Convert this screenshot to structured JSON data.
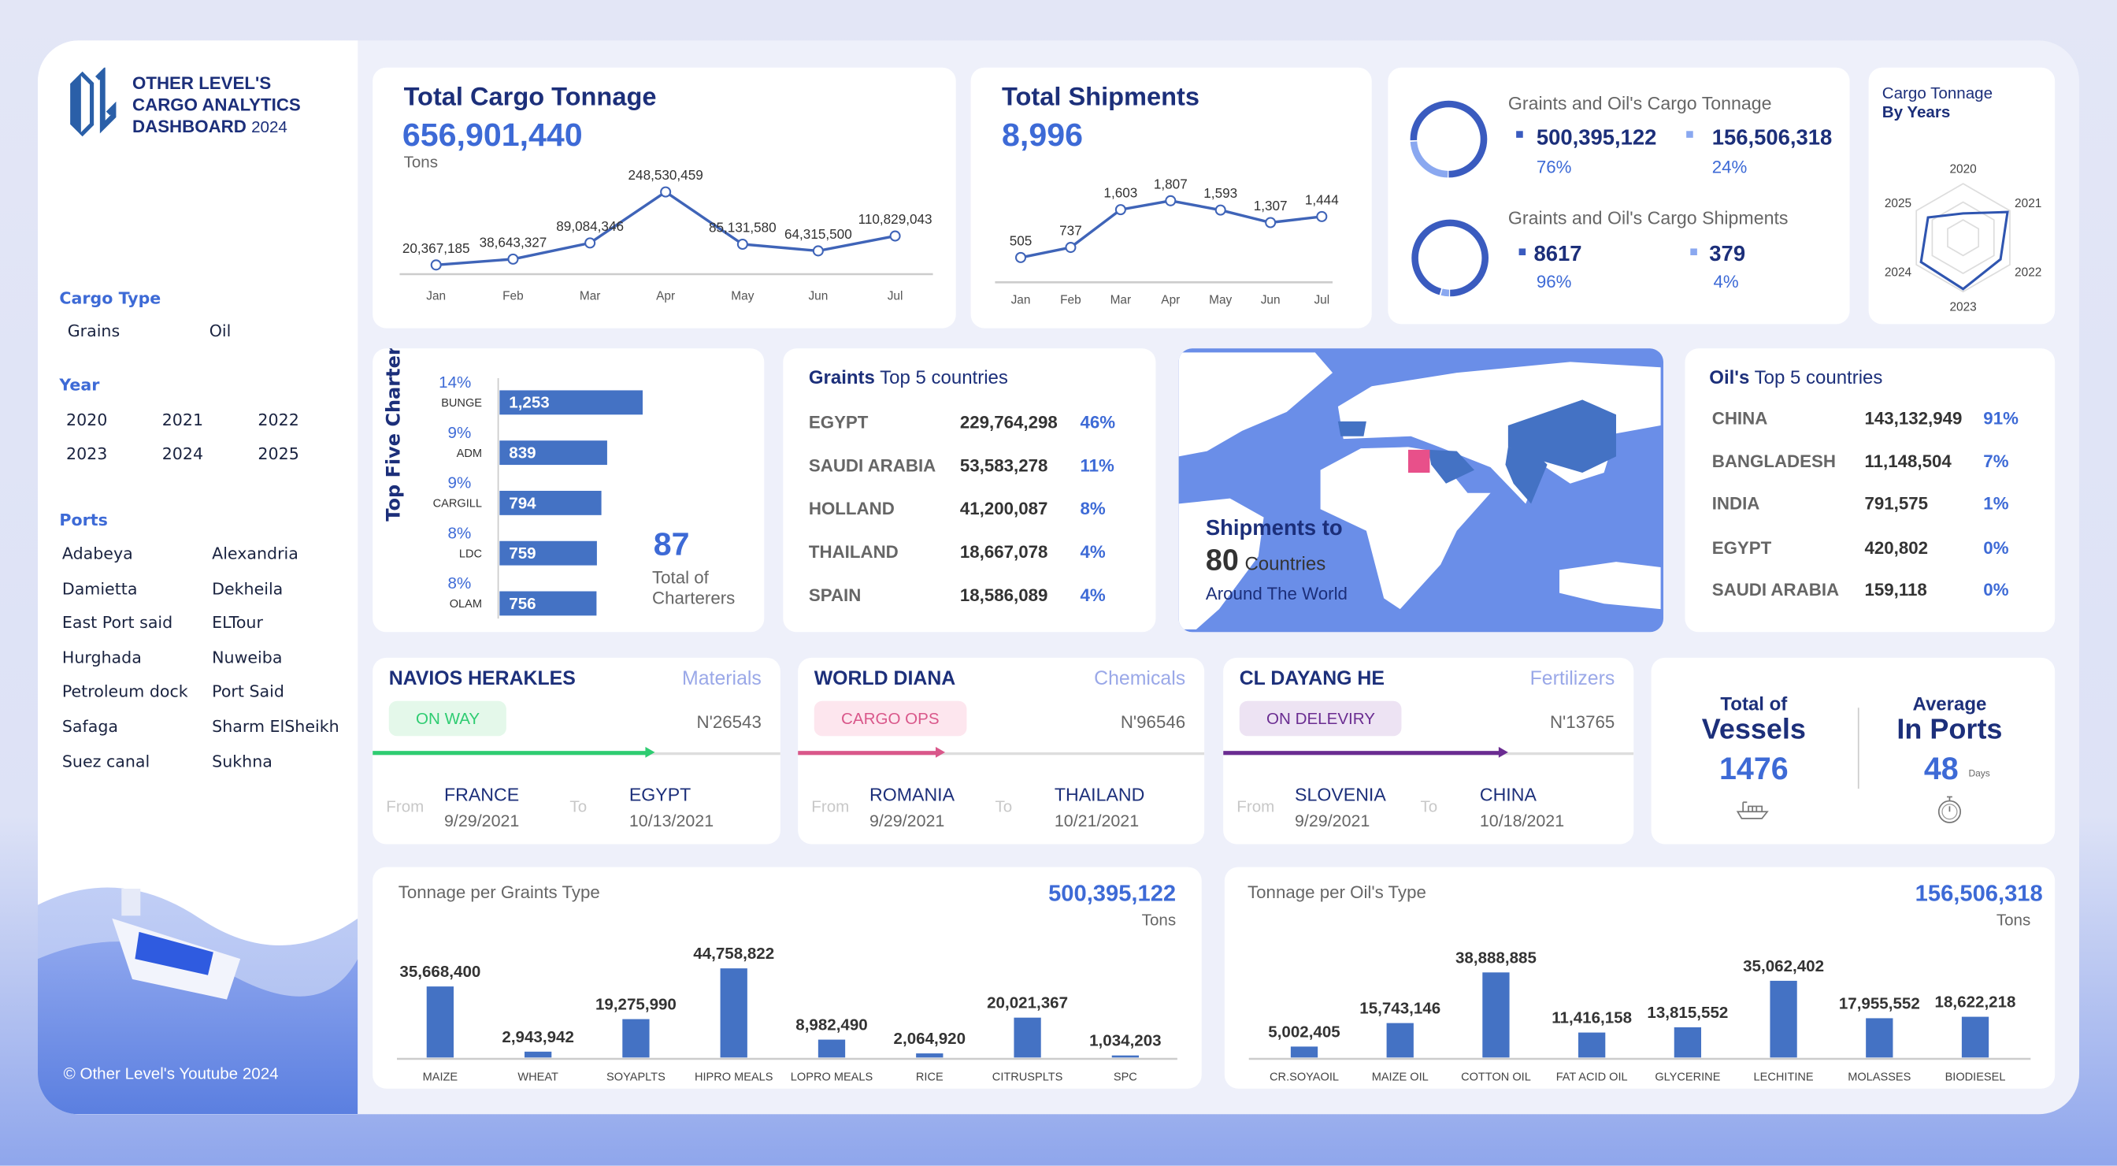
{
  "sidebar": {
    "logo_lines": [
      "OTHER LEVEL'S",
      "CARGO ANALYTICS",
      "DASHBOARD"
    ],
    "logo_year": "2024",
    "cargo_type_label": "Cargo Type",
    "cargo_types": [
      "Grains",
      "Oil"
    ],
    "year_label": "Year",
    "years": [
      "2020",
      "2021",
      "2022",
      "2023",
      "2024",
      "2025"
    ],
    "ports_label": "Ports",
    "ports": [
      "Adabeya",
      "Alexandria",
      "Damietta",
      "Dekheila",
      "East Port said",
      "ELTour",
      "Hurghada",
      "Nuweiba",
      "Petroleum dock",
      "Port Said",
      "Safaga",
      "Sharm ElSheikh",
      "Suez canal",
      "Sukhna"
    ],
    "copyright": "© Other Level's Youtube 2024"
  },
  "tonnage": {
    "title": "Total Cargo Tonnage",
    "value": "656,901,440",
    "unit": "Tons"
  },
  "shipments": {
    "title": "Total Shipments",
    "value": "8,996"
  },
  "split": {
    "tonnage_title": "Graints and Oil's Cargo Tonnage",
    "tonnage": [
      {
        "value": "500,395,122",
        "pct": "76%",
        "share": 76
      },
      {
        "value": "156,506,318",
        "pct": "24%",
        "share": 24
      }
    ],
    "shipments_title": "Graints and Oil's Cargo Shipments",
    "shipments": [
      {
        "value": "8617",
        "pct": "96%",
        "share": 96
      },
      {
        "value": "379",
        "pct": "4%",
        "share": 4
      }
    ]
  },
  "radar": {
    "title_lines": [
      "Cargo Tonnage",
      "By Years"
    ]
  },
  "charters": {
    "axis_title": "Top Five Charters",
    "total": "87",
    "total_label_lines": [
      "Total of",
      "Charterers"
    ]
  },
  "grains_top": {
    "title_bold": "Graints",
    "title_rest": " Top 5 countries",
    "rows": [
      [
        "EGYPT",
        "229,764,298",
        "46%"
      ],
      [
        "SAUDI ARABIA",
        "53,583,278",
        "11%"
      ],
      [
        "HOLLAND",
        "41,200,087",
        "8%"
      ],
      [
        "THAILAND",
        "18,667,078",
        "4%"
      ],
      [
        "SPAIN",
        "18,586,089",
        "4%"
      ]
    ]
  },
  "map": {
    "line1": "Shipments to",
    "count": "80",
    "count_label": "Countries",
    "line3": "Around The World",
    "highlight_color": "#e8508a",
    "region_color": "#4472c4",
    "sea_color": "#6a8ee8"
  },
  "oil_top": {
    "title_bold": "Oil's",
    "title_rest": " Top 5 countries",
    "rows": [
      [
        "CHINA",
        "143,132,949",
        "91%"
      ],
      [
        "BANGLADESH",
        "11,148,504",
        "7%"
      ],
      [
        "INDIA",
        "791,575",
        "1%"
      ],
      [
        "EGYPT",
        "420,802",
        "0%"
      ],
      [
        "SAUDI ARABIA",
        "159,118",
        "0%"
      ]
    ]
  },
  "vessels": [
    {
      "name": "NAVIOS HERAKLES",
      "category": "Materials",
      "status": "ON WAY",
      "number": "N'26543",
      "from_label": "From",
      "to_label": "To",
      "from": "FRANCE",
      "from_date": "9/29/2021",
      "to": "EGYPT",
      "to_date": "10/13/2021",
      "color": "#2ecc71",
      "bg": "#e4f8ea",
      "progress": 0.68
    },
    {
      "name": "WORLD DIANA",
      "category": "Chemicals",
      "status": "CARGO OPS",
      "number": "N'96546",
      "from_label": "From",
      "to_label": "To",
      "from": "ROMANIA",
      "from_date": "9/29/2021",
      "to": "THAILAND",
      "to_date": "10/21/2021",
      "color": "#d9578a",
      "bg": "#fde6ee",
      "progress": 0.35
    },
    {
      "name": "CL DAYANG HE",
      "category": "Fertilizers",
      "status": "ON DELEVIRY",
      "number": "N'13765",
      "from_label": "From",
      "to_label": "To",
      "from": "SLOVENIA",
      "from_date": "9/29/2021",
      "to": "CHINA",
      "to_date": "10/18/2021",
      "color": "#6a2c91",
      "bg": "#ede3f3",
      "progress": 0.68
    }
  ],
  "totals": {
    "vessels_l1": "Total of",
    "vessels_l2": "Vessels",
    "vessels_value": "1476",
    "ports_l1": "Average",
    "ports_l2": "In Ports",
    "ports_value": "48",
    "ports_unit": "Days"
  },
  "grains_bar": {
    "title": "Tonnage per Graints Type",
    "total": "500,395,122",
    "unit": "Tons"
  },
  "oil_bar": {
    "title": "Tonnage per Oil's Type",
    "total": "156,506,318",
    "unit": "Tons"
  },
  "chart_data": [
    {
      "id": "tonnage",
      "type": "line",
      "categories": [
        "Jan",
        "Feb",
        "Mar",
        "Apr",
        "May",
        "Jun",
        "Jul"
      ],
      "values": [
        20367185,
        38643327,
        89084346,
        248530459,
        85131580,
        64315500,
        110829043
      ],
      "labels": [
        "20,367,185",
        "38,643,327",
        "89,084,346",
        "248,530,459",
        "85,131,580",
        "64,315,500",
        "110,829,043"
      ],
      "color": "#3f64b8"
    },
    {
      "id": "shipments",
      "type": "line",
      "categories": [
        "Jan",
        "Feb",
        "Mar",
        "Apr",
        "May",
        "Jun",
        "Jul"
      ],
      "values": [
        505,
        737,
        1603,
        1807,
        1593,
        1307,
        1444
      ],
      "labels": [
        "505",
        "737",
        "1,603",
        "1,807",
        "1,593",
        "1,307",
        "1,444"
      ],
      "color": "#3f64b8"
    },
    {
      "id": "radar",
      "type": "radar",
      "categories": [
        "2020",
        "2021",
        "2022",
        "2023",
        "2024",
        "2025"
      ],
      "relative_values": [
        0.45,
        0.95,
        0.8,
        0.95,
        0.9,
        0.75
      ],
      "color": "#2f55b0"
    },
    {
      "id": "charters",
      "type": "bar",
      "orientation": "horizontal",
      "categories": [
        "BUNGE",
        "ADM",
        "CARGILL",
        "LDC",
        "OLAM"
      ],
      "values": [
        1253,
        839,
        794,
        759,
        756
      ],
      "labels": [
        "1,253",
        "839",
        "794",
        "759",
        "756"
      ],
      "pcts": [
        "14%",
        "9%",
        "9%",
        "8%",
        "8%"
      ],
      "color": "#4472c4"
    },
    {
      "id": "grains",
      "type": "bar",
      "categories": [
        "MAIZE",
        "WHEAT",
        "SOYAPLTS",
        "HIPRO MEALS",
        "LOPRO MEALS",
        "RICE",
        "CITRUSPLTS",
        "SPC"
      ],
      "values": [
        35668400,
        2943942,
        19275990,
        44758822,
        8982490,
        2064920,
        20021367,
        1034203
      ],
      "labels": [
        "35,668,400",
        "2,943,942",
        "19,275,990",
        "44,758,822",
        "8,982,490",
        "2,064,920",
        "20,021,367",
        "1,034,203"
      ],
      "color": "#4472c4"
    },
    {
      "id": "oil",
      "type": "bar",
      "categories": [
        "CR.SOYAOIL",
        "MAIZE OIL",
        "COTTON OIL",
        "FAT ACID OIL",
        "GLYCERINE",
        "LECHITINE",
        "MOLASSES",
        "BIODIESEL"
      ],
      "values": [
        5002405,
        15743146,
        38888885,
        11416158,
        13815552,
        35062402,
        17955552,
        18622218
      ],
      "labels": [
        "5,002,405",
        "15,743,146",
        "38,888,885",
        "11,416,158",
        "13,815,552",
        "35,062,402",
        "17,955,552",
        "18,622,218"
      ],
      "color": "#4472c4"
    }
  ]
}
